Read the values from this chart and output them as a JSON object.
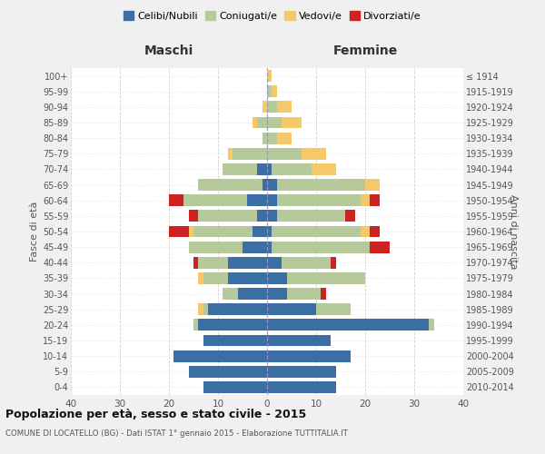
{
  "age_groups_display": [
    "0-4",
    "5-9",
    "10-14",
    "15-19",
    "20-24",
    "25-29",
    "30-34",
    "35-39",
    "40-44",
    "45-49",
    "50-54",
    "55-59",
    "60-64",
    "65-69",
    "70-74",
    "75-79",
    "80-84",
    "85-89",
    "90-94",
    "95-99",
    "100+"
  ],
  "birth_years_display": [
    "2010-2014",
    "2005-2009",
    "2000-2004",
    "1995-1999",
    "1990-1994",
    "1985-1989",
    "1980-1984",
    "1975-1979",
    "1970-1974",
    "1965-1969",
    "1960-1964",
    "1955-1959",
    "1950-1954",
    "1945-1949",
    "1940-1944",
    "1935-1939",
    "1930-1934",
    "1925-1929",
    "1920-1924",
    "1915-1919",
    "≤ 1914"
  ],
  "colors": {
    "celibe": "#3a6ea5",
    "coniugato": "#b5c99a",
    "vedovo": "#f5c96a",
    "divorziato": "#cc2222"
  },
  "maschi": {
    "celibe": [
      13,
      16,
      19,
      13,
      14,
      12,
      6,
      8,
      8,
      5,
      3,
      2,
      4,
      1,
      2,
      0,
      0,
      0,
      0,
      0,
      0
    ],
    "coniugato": [
      0,
      0,
      0,
      0,
      1,
      1,
      3,
      5,
      6,
      11,
      12,
      12,
      13,
      13,
      7,
      7,
      1,
      2,
      0,
      0,
      0
    ],
    "vedovo": [
      0,
      0,
      0,
      0,
      0,
      1,
      0,
      1,
      0,
      0,
      1,
      0,
      0,
      0,
      0,
      1,
      0,
      1,
      1,
      0,
      0
    ],
    "divorziato": [
      0,
      0,
      0,
      0,
      0,
      0,
      0,
      0,
      1,
      0,
      4,
      2,
      3,
      0,
      0,
      0,
      0,
      0,
      0,
      0,
      0
    ]
  },
  "femmine": {
    "nubile": [
      14,
      14,
      17,
      13,
      33,
      10,
      4,
      4,
      3,
      1,
      1,
      2,
      2,
      2,
      1,
      0,
      0,
      0,
      0,
      0,
      0
    ],
    "coniugata": [
      0,
      0,
      0,
      0,
      1,
      7,
      7,
      16,
      10,
      20,
      18,
      14,
      17,
      18,
      8,
      7,
      2,
      3,
      2,
      1,
      0
    ],
    "vedova": [
      0,
      0,
      0,
      0,
      0,
      0,
      0,
      0,
      0,
      0,
      2,
      0,
      2,
      3,
      5,
      5,
      3,
      4,
      3,
      1,
      1
    ],
    "divorziata": [
      0,
      0,
      0,
      0,
      0,
      0,
      1,
      0,
      1,
      4,
      2,
      2,
      2,
      0,
      0,
      0,
      0,
      0,
      0,
      0,
      0
    ]
  },
  "xlim": [
    -40,
    40
  ],
  "title": "Popolazione per età, sesso e stato civile - 2015",
  "subtitle": "COMUNE DI LOCATELLO (BG) - Dati ISTAT 1° gennaio 2015 - Elaborazione TUTTITALIA.IT",
  "ylabel_left": "Fasce di età",
  "ylabel_right": "Anni di nascita",
  "xlabel_left": "Maschi",
  "xlabel_right": "Femmine",
  "legend_labels": [
    "Celibi/Nubili",
    "Coniugati/e",
    "Vedovi/e",
    "Divorziati/e"
  ],
  "background_color": "#f0f0f0",
  "plot_background": "#ffffff"
}
